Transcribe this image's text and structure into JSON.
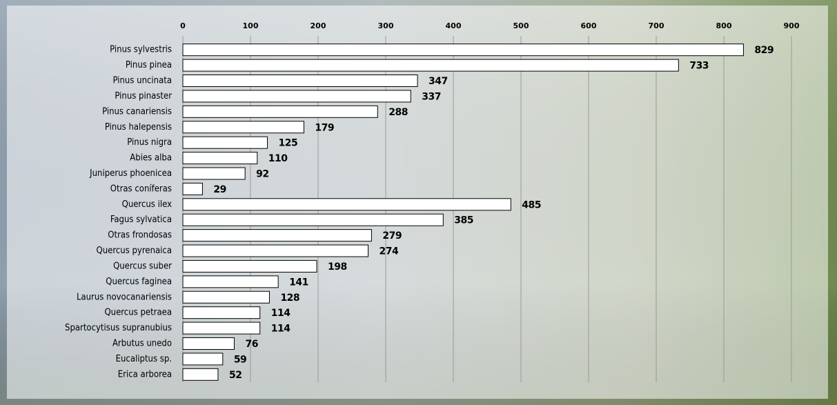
{
  "chart_data": {
    "type": "bar",
    "orientation": "horizontal",
    "categories": [
      "Pinus sylvestris",
      "Pinus pinea",
      "Pinus uncinata",
      "Pinus pinaster",
      "Pinus canariensis",
      "Pinus halepensis",
      "Pinus nigra",
      "Abies alba",
      "Juniperus phoenicea",
      "Otras coníferas",
      "Quercus ilex",
      "Fagus sylvatica",
      "Otras frondosas",
      "Quercus pyrenaica",
      "Quercus suber",
      "Quercus faginea",
      "Laurus novocanariensis",
      "Quercus petraea",
      "Spartocytisus supranubius",
      "Arbutus unedo",
      "Eucaliptus sp.",
      "Erica arborea"
    ],
    "values": [
      829,
      733,
      347,
      337,
      288,
      179,
      125,
      110,
      92,
      29,
      485,
      385,
      279,
      274,
      198,
      141,
      128,
      114,
      114,
      76,
      59,
      52
    ],
    "color": "#ffffff",
    "xlim": [
      0,
      900
    ],
    "xticks": [
      0,
      100,
      200,
      300,
      400,
      500,
      600,
      700,
      800,
      900
    ],
    "grid": true
  }
}
